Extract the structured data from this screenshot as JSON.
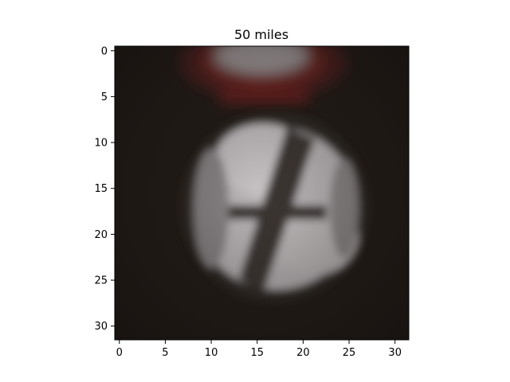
{
  "figure": {
    "title": "50 miles",
    "image_kind": "32x32 low-resolution photo of a circular road sign (dark background, white disc with a dark diagonal stripe, red rim visible at the top)",
    "grid_size": [
      32,
      32
    ],
    "colors": {
      "background": "#1f1915",
      "sign_face": "#b9b6b8",
      "sign_stripe": "#3a3430",
      "sign_rim_red": "#6a1e1c",
      "axis": "#000000"
    }
  },
  "axes": {
    "x_ticks": [
      "0",
      "5",
      "10",
      "15",
      "20",
      "25",
      "30"
    ],
    "y_ticks": [
      "0",
      "5",
      "10",
      "15",
      "20",
      "25",
      "30"
    ]
  }
}
